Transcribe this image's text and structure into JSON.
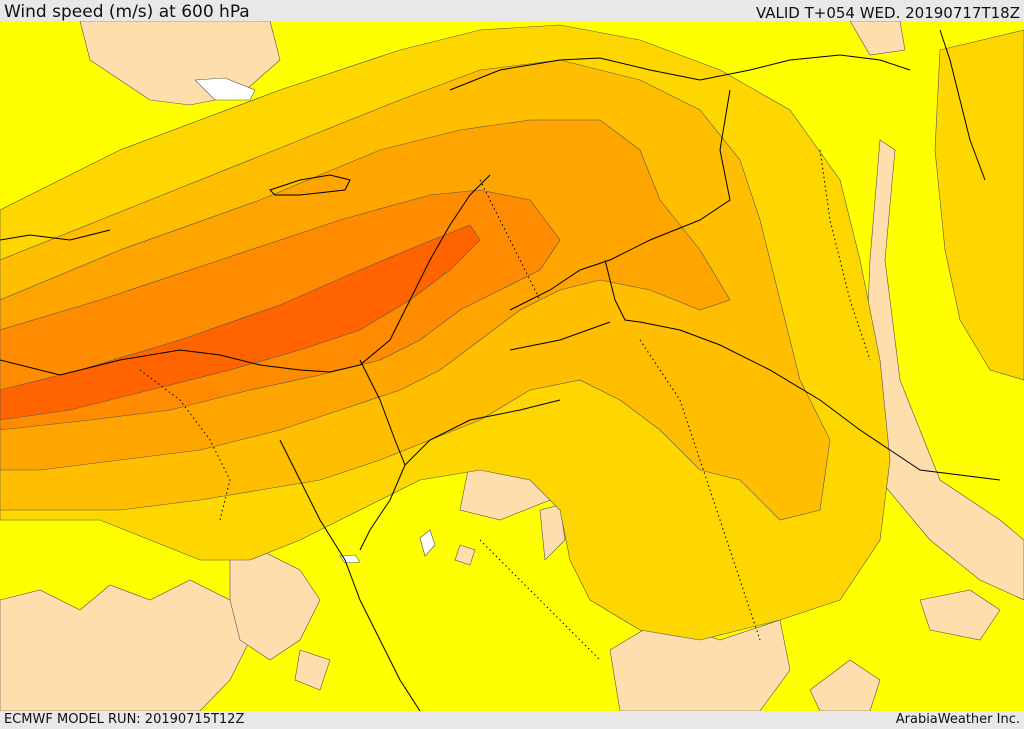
{
  "header": {
    "title": "Wind speed (m/s) at 600 hPa",
    "valid": "VALID T+054 WED. 20190717T18Z"
  },
  "footer": {
    "model_run": "ECMWF MODEL RUN: 20190715T12Z",
    "credit": "ArabiaWeather Inc."
  },
  "colors": {
    "background": "#e8e8e8",
    "calm": "#ffffff",
    "light": "#ffdead",
    "band_1": "#ffff00",
    "band_2": "#ffd700",
    "band_3": "#ffbf00",
    "band_4": "#ffa500",
    "band_5": "#ff8c00",
    "band_6": "#ff6400",
    "jet_core": "#ff5a00"
  }
}
